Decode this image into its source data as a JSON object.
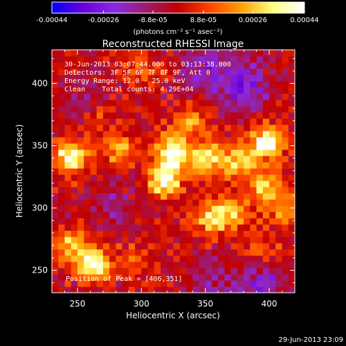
{
  "chart_data": {
    "type": "heatmap",
    "title": "Reconstructed RHESSI Image",
    "xlabel": "Heliocentric X (arcsec)",
    "ylabel": "Heliocentric Y (arcsec)",
    "xlim": [
      230,
      420
    ],
    "ylim": [
      232,
      427
    ],
    "x_ticks": [
      250,
      300,
      350,
      400
    ],
    "y_ticks": [
      250,
      300,
      350,
      400
    ],
    "colorbar": {
      "unit_label": "(photons cm⁻² s⁻¹ asec⁻²)",
      "range": [
        -0.00044,
        0.00044
      ],
      "tick_values": [
        -0.00044,
        -0.00026,
        -8.8e-05,
        8.8e-05,
        0.00026,
        0.00044
      ],
      "tick_labels": [
        "-0.00044",
        "-0.00026",
        "-8.8e-05",
        "8.8e-05",
        "0.00026",
        "0.00044"
      ],
      "colors": [
        "#0000ff",
        "#6a00d8",
        "#8a2be2",
        "#9e1a6c",
        "#c00000",
        "#ff4400",
        "#ffa000",
        "#ffff80",
        "#ffffff"
      ]
    },
    "annotations": {
      "time_range": "30-Jun-2013 03:07:44.000 to 03:13:38.000",
      "detectors": "Detectors: 3F 5F 6F 7F 8F 9F, Att 0",
      "energy_range": "Energy Range: 12.0 - 25.0 keV",
      "method_counts": "Clean    Total counts: 4.29E+04",
      "peak": "Position of Peak = [406,351]"
    },
    "peak_position": [
      406,
      351
    ],
    "sources": [
      {
        "x": 245,
        "y": 342,
        "amp": 0.0004
      },
      {
        "x": 263,
        "y": 255,
        "amp": 0.0004
      },
      {
        "x": 246,
        "y": 270,
        "amp": 0.0003
      },
      {
        "x": 282,
        "y": 348,
        "amp": 0.00022
      },
      {
        "x": 330,
        "y": 343,
        "amp": 0.0002
      },
      {
        "x": 318,
        "y": 323,
        "amp": 0.0004
      },
      {
        "x": 322,
        "y": 345,
        "amp": 0.0003
      },
      {
        "x": 338,
        "y": 370,
        "amp": 0.0002
      },
      {
        "x": 355,
        "y": 293,
        "amp": 0.0003
      },
      {
        "x": 372,
        "y": 297,
        "amp": 0.00025
      },
      {
        "x": 352,
        "y": 340,
        "amp": 0.0003
      },
      {
        "x": 375,
        "y": 338,
        "amp": 0.0003
      },
      {
        "x": 398,
        "y": 352,
        "amp": 0.00044
      },
      {
        "x": 396,
        "y": 318,
        "amp": 0.0003
      },
      {
        "x": 410,
        "y": 300,
        "amp": 0.0002
      },
      {
        "x": 295,
        "y": 260,
        "amp": 0.00012
      },
      {
        "x": 395,
        "y": 265,
        "amp": 0.00015
      },
      {
        "x": 300,
        "y": 410,
        "amp": 0.00012
      },
      {
        "x": 265,
        "y": 372,
        "amp": 0.00015
      }
    ],
    "negative_regions": [
      {
        "x": 380,
        "y": 398,
        "amp": -0.00026
      },
      {
        "x": 350,
        "y": 410,
        "amp": -0.00018
      },
      {
        "x": 255,
        "y": 385,
        "amp": -0.00012
      },
      {
        "x": 278,
        "y": 300,
        "amp": -0.00012
      },
      {
        "x": 355,
        "y": 240,
        "amp": -0.00012
      },
      {
        "x": 395,
        "y": 238,
        "amp": -0.0002
      }
    ]
  },
  "footer": {
    "timestamp": "29-Jun-2013 23:09"
  }
}
